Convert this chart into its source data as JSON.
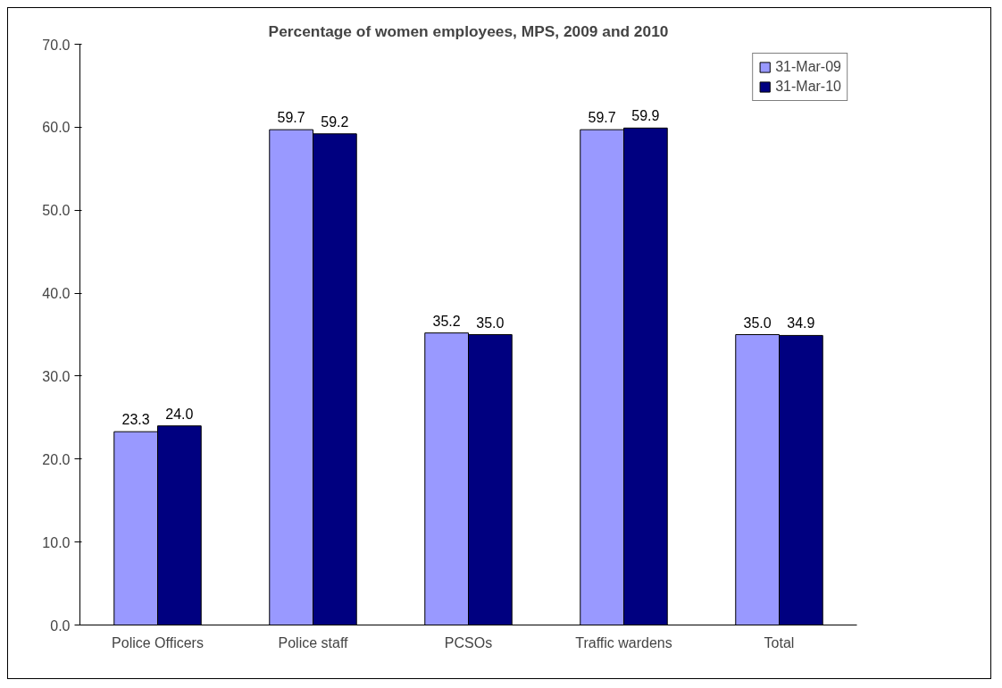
{
  "chart_data": {
    "type": "bar",
    "title": "Percentage of women employees, MPS, 2009 and 2010",
    "categories": [
      "Police Officers",
      "Police staff",
      "PCSOs",
      "Traffic wardens",
      "Total"
    ],
    "series": [
      {
        "name": "31-Mar-09",
        "color": "#9999ff",
        "values": [
          23.3,
          59.7,
          35.2,
          59.7,
          35.0
        ],
        "value_labels": [
          "23.3",
          "59.7",
          "35.2",
          "59.7",
          "35.0"
        ]
      },
      {
        "name": "31-Mar-10",
        "color": "#000080",
        "values": [
          24.0,
          59.2,
          35.0,
          59.9,
          34.9
        ],
        "value_labels": [
          "24.0",
          "59.2",
          "35.0",
          "59.9",
          "34.9"
        ]
      }
    ],
    "ylim": [
      0,
      70
    ],
    "yticks": [
      {
        "value": 0,
        "label": "0.0"
      },
      {
        "value": 10,
        "label": "10.0"
      },
      {
        "value": 20,
        "label": "20.0"
      },
      {
        "value": 30,
        "label": "30.0"
      },
      {
        "value": 40,
        "label": "40.0"
      },
      {
        "value": 50,
        "label": "50.0"
      },
      {
        "value": 60,
        "label": "60.0"
      },
      {
        "value": 70,
        "label": "70.0"
      }
    ],
    "grid": false,
    "legend": "top right"
  }
}
